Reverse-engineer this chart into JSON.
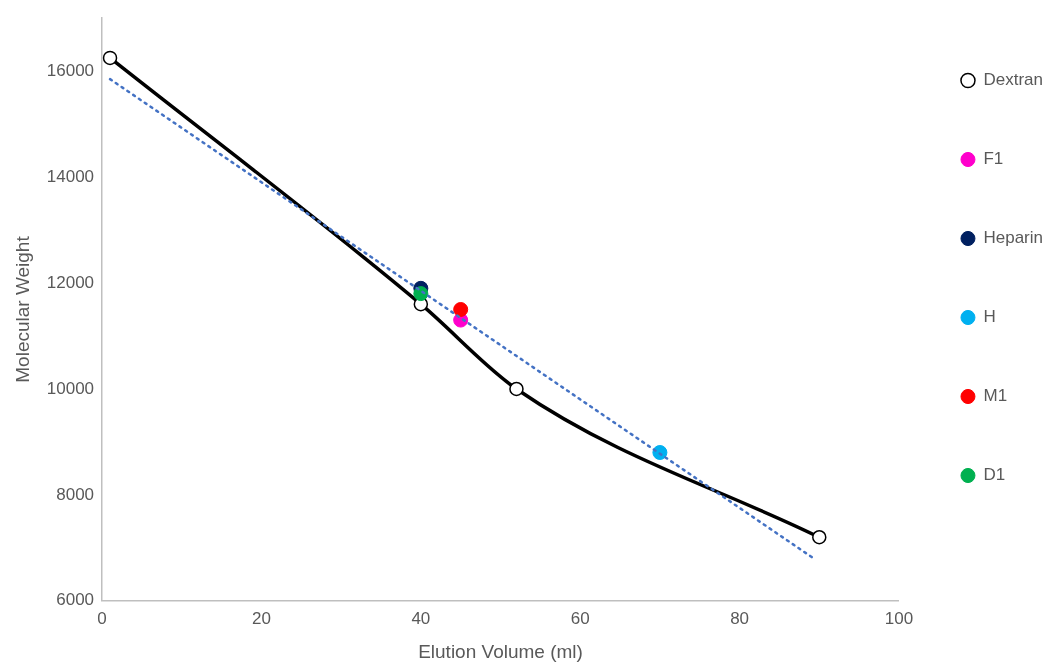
{
  "chart_data": {
    "type": "line",
    "xlabel": "Elution Volume (ml)",
    "ylabel": "Molecular Weight",
    "xlim": [
      0,
      100
    ],
    "xticks": [
      0,
      20,
      40,
      60,
      80,
      100
    ],
    "ylim": [
      6000,
      17000
    ],
    "yticks": [
      6000,
      8000,
      10000,
      12000,
      14000,
      16000
    ],
    "grid": false,
    "legend": "right",
    "marker": "circle",
    "series": [
      {
        "name": "Dextran",
        "type": "line",
        "color": "#000000",
        "x": [
          1,
          40,
          52,
          90
        ],
        "values": [
          16250,
          11600,
          10000,
          7200
        ]
      },
      {
        "name": "F1",
        "type": "scatter",
        "color": "#ff00cc",
        "x": [
          45
        ],
        "values": [
          11300
        ]
      },
      {
        "name": "Heparin",
        "type": "scatter",
        "color": "#002060",
        "x": [
          40
        ],
        "values": [
          11900
        ]
      },
      {
        "name": "H",
        "type": "scatter",
        "color": "#00b0f0",
        "x": [
          70
        ],
        "values": [
          8800
        ]
      },
      {
        "name": "M1",
        "type": "scatter",
        "color": "#ff0000",
        "x": [
          45
        ],
        "values": [
          11500
        ]
      },
      {
        "name": "D1",
        "type": "scatter",
        "color": "#00b050",
        "x": [
          40
        ],
        "values": [
          11800
        ]
      },
      {
        "type": "line",
        "color": "#4472c4",
        "line_style": "dotted",
        "marker": "none",
        "x": [
          1,
          89.5
        ],
        "values": [
          15850,
          6780
        ]
      }
    ]
  }
}
